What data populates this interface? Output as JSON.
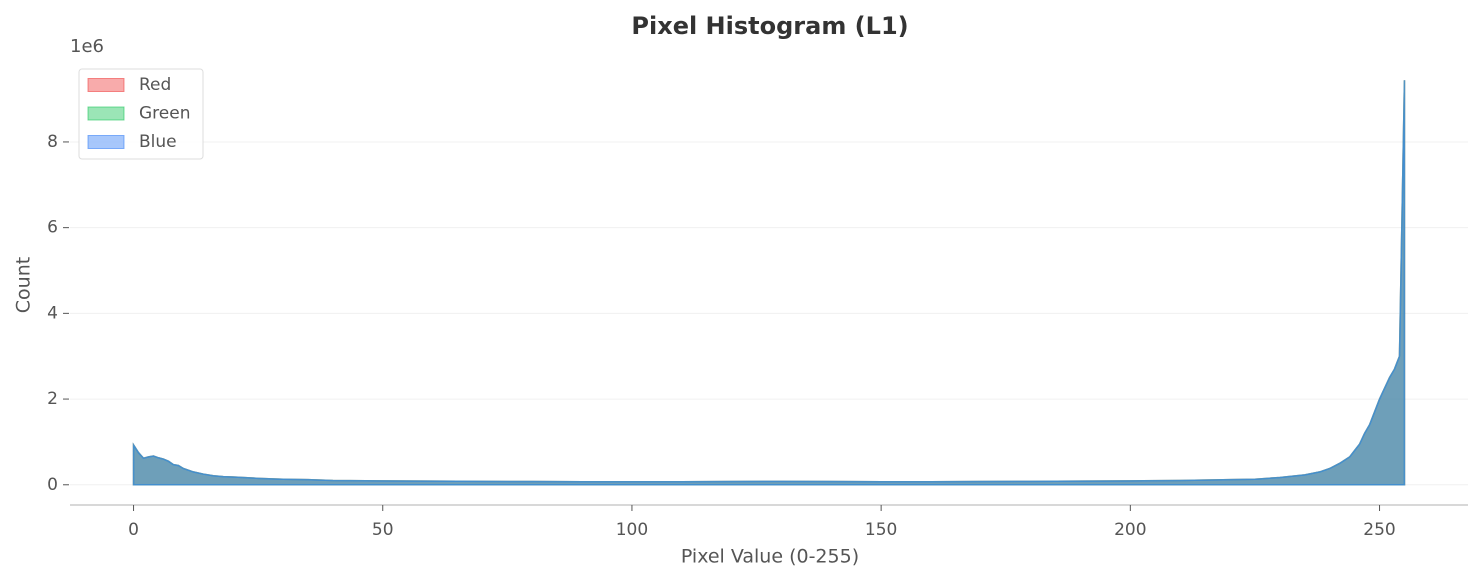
{
  "chart_data": {
    "type": "area",
    "title": "Pixel Histogram (L1)",
    "x_label": "Pixel Value (0-255)",
    "y_label": "Count",
    "y_offset_label": "1e6",
    "x": [
      0,
      1,
      2,
      3,
      4,
      5,
      6,
      7,
      8,
      9,
      10,
      12,
      14,
      16,
      18,
      20,
      25,
      30,
      35,
      40,
      50,
      60,
      70,
      80,
      90,
      100,
      110,
      120,
      130,
      140,
      150,
      160,
      170,
      180,
      190,
      200,
      210,
      220,
      225,
      230,
      235,
      238,
      240,
      242,
      244,
      245,
      246,
      247,
      248,
      249,
      250,
      251,
      252,
      253,
      254,
      255
    ],
    "series": [
      {
        "name": "Red",
        "color": "#ef4444",
        "values": [
          930000,
          750000,
          620000,
          650000,
          670000,
          630000,
          600000,
          550000,
          470000,
          450000,
          380000,
          300000,
          250000,
          210000,
          190000,
          180000,
          150000,
          130000,
          120000,
          100000,
          90000,
          85000,
          80000,
          75000,
          70000,
          70000,
          70000,
          75000,
          80000,
          75000,
          70000,
          70000,
          75000,
          80000,
          85000,
          90000,
          100000,
          120000,
          130000,
          170000,
          230000,
          300000,
          380000,
          500000,
          650000,
          800000,
          950000,
          1200000,
          1400000,
          1700000,
          2000000,
          2250000,
          2500000,
          2700000,
          3000000,
          9440000
        ]
      },
      {
        "name": "Green",
        "color": "#22c55e",
        "values": [
          930000,
          750000,
          620000,
          650000,
          670000,
          630000,
          600000,
          550000,
          470000,
          450000,
          380000,
          300000,
          250000,
          210000,
          190000,
          180000,
          150000,
          130000,
          120000,
          100000,
          90000,
          85000,
          80000,
          75000,
          70000,
          70000,
          70000,
          75000,
          80000,
          75000,
          70000,
          70000,
          75000,
          80000,
          85000,
          90000,
          100000,
          120000,
          130000,
          170000,
          230000,
          300000,
          380000,
          500000,
          650000,
          800000,
          950000,
          1200000,
          1400000,
          1700000,
          2000000,
          2250000,
          2500000,
          2700000,
          3000000,
          9440000
        ]
      },
      {
        "name": "Blue",
        "color": "#3b82f6",
        "values": [
          930000,
          750000,
          620000,
          650000,
          670000,
          630000,
          600000,
          550000,
          470000,
          450000,
          380000,
          300000,
          250000,
          210000,
          190000,
          180000,
          150000,
          130000,
          120000,
          100000,
          90000,
          85000,
          80000,
          75000,
          70000,
          70000,
          70000,
          75000,
          80000,
          75000,
          70000,
          70000,
          75000,
          80000,
          85000,
          90000,
          100000,
          120000,
          130000,
          170000,
          230000,
          300000,
          380000,
          500000,
          650000,
          800000,
          950000,
          1200000,
          1400000,
          1700000,
          2000000,
          2250000,
          2500000,
          2700000,
          3000000,
          9440000
        ]
      }
    ],
    "xlim": [
      -12.75,
      267.75
    ],
    "xticks": [
      0,
      50,
      100,
      150,
      200,
      250
    ],
    "ylim": [
      -472000,
      9912000
    ],
    "yticks": [
      {
        "value": 0,
        "label": "0"
      },
      {
        "value": 2000000,
        "label": "2"
      },
      {
        "value": 4000000,
        "label": "4"
      },
      {
        "value": 6000000,
        "label": "6"
      },
      {
        "value": 8000000,
        "label": "8"
      }
    ],
    "grid": true,
    "legend": "upper left"
  }
}
